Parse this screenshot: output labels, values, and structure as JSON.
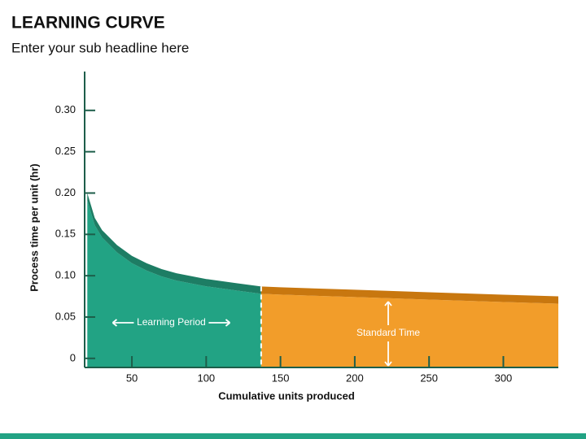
{
  "chart_data": {
    "type": "area",
    "title": "LEARNING CURVE",
    "subtitle": "Enter your sub headline here",
    "x_label": "Cumulative units produced",
    "y_label": "Process time per unit (hr)",
    "xlim": [
      18.2,
      337
    ],
    "ylim": [
      -0.011,
      0.347
    ],
    "xticks": [
      50,
      100,
      150,
      200,
      250,
      300
    ],
    "yticks": [
      0,
      0.05,
      {
        "value": 0.1,
        "label": "0.10"
      },
      0.15,
      {
        "value": 0.2,
        "label": "0.20"
      },
      0.25,
      {
        "value": 0.3,
        "label": "0.30"
      }
    ],
    "divider_x": 137,
    "series": [
      {
        "name": "Learning Period",
        "color": "#22a384",
        "band_color": "#1d7d64",
        "x": [
          20,
          25,
          30,
          40,
          50,
          60,
          70,
          80,
          100,
          120,
          137
        ],
        "values": [
          0.2,
          0.17,
          0.155,
          0.137,
          0.124,
          0.115,
          0.108,
          0.103,
          0.096,
          0.091,
          0.087
        ]
      },
      {
        "name": "Standard Time",
        "color": "#f29d2a",
        "band_color": "#c8770f",
        "x": [
          137,
          150,
          200,
          250,
          300,
          337
        ],
        "values": [
          0.087,
          0.086,
          0.083,
          0.08,
          0.077,
          0.075
        ]
      }
    ]
  }
}
